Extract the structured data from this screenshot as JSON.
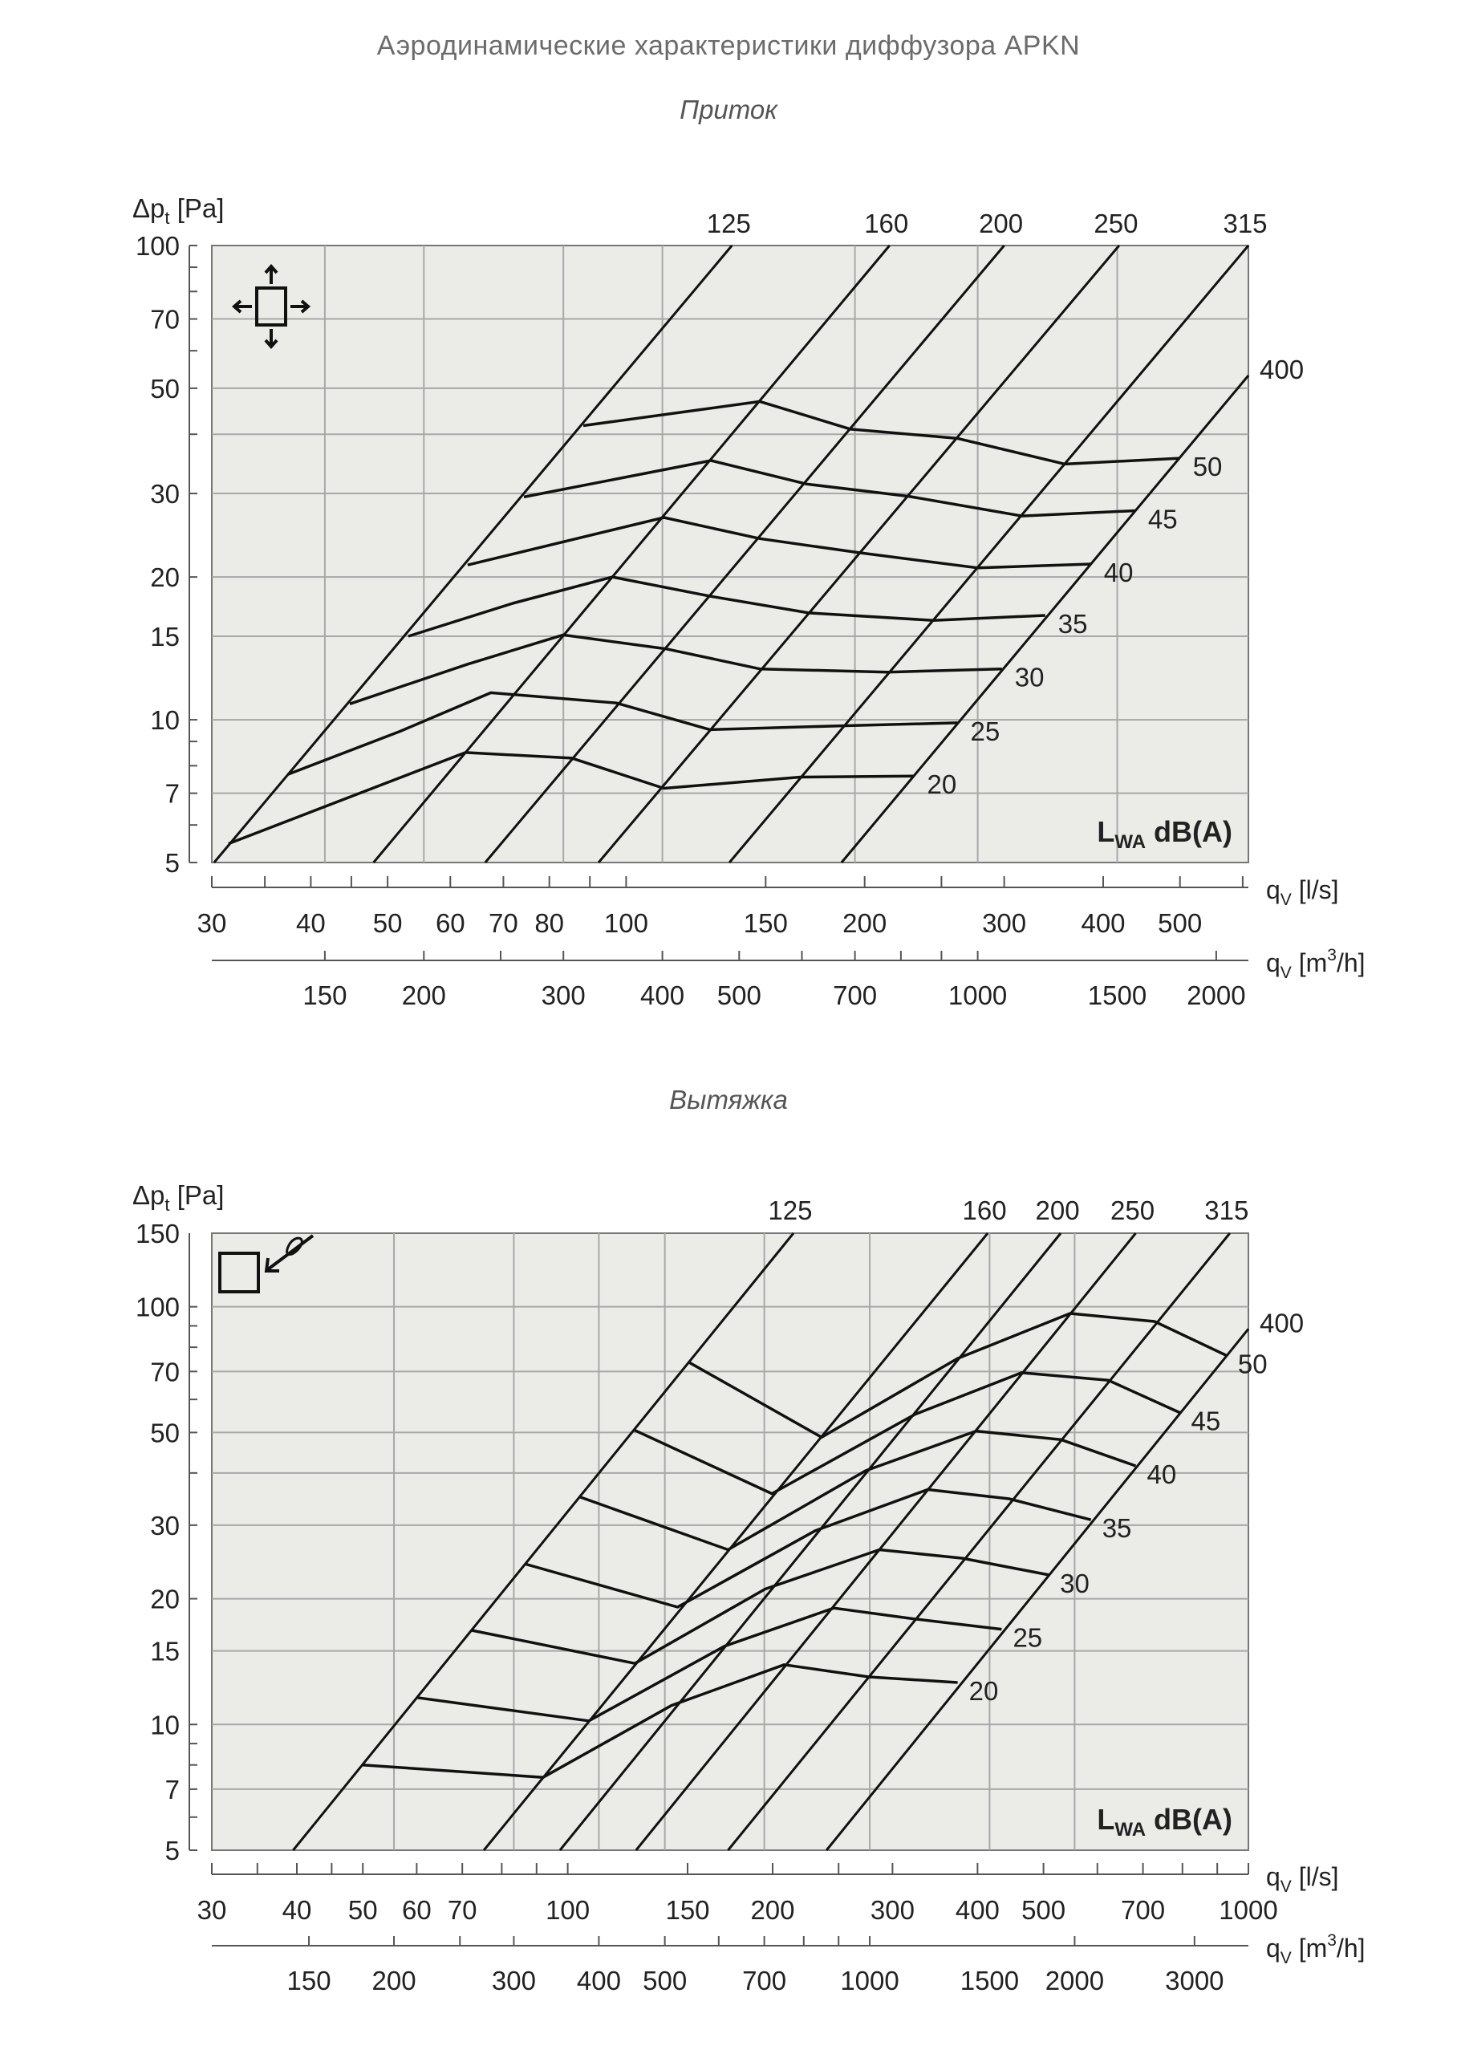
{
  "page": {
    "title": "Аэродинамические характеристики диффузора APKN",
    "supply_label": "Приток",
    "exhaust_label": "Вытяжка"
  },
  "colors": {
    "plot_bg": "#ebebe8",
    "grid": "#a8a8a8",
    "line": "#111111",
    "text": "#222222"
  },
  "chart_data": [
    {
      "type": "line",
      "title": "Приток",
      "icon": "supply-four-way-arrows-icon",
      "ylabel": {
        "main": "Δp",
        "sub": "t",
        "unit": " [Pa]"
      },
      "xlabel": {
        "main": "q",
        "sub": "V",
        "unit": " [l/s]"
      },
      "x2label": {
        "main": "q",
        "sub": "V",
        "unit": " [m",
        "sup": "3",
        "unit2": "/h]"
      },
      "annotation": {
        "main": "L",
        "sub": "WA",
        "rest": " dB(A)"
      },
      "xscale": "log",
      "yscale": "log",
      "xlim": [
        30,
        610
      ],
      "ylim": [
        5,
        100
      ],
      "yticks": [
        100,
        70,
        50,
        30,
        20,
        15,
        10,
        7,
        5
      ],
      "ygrid": [
        70,
        50,
        40,
        30,
        20,
        15,
        10,
        7
      ],
      "xticks": [
        30,
        40,
        50,
        60,
        70,
        80,
        100,
        150,
        200,
        300,
        400,
        500
      ],
      "x2ticks_m3h": [
        150,
        200,
        300,
        400,
        500,
        700,
        1000,
        1500,
        2000
      ],
      "xgrid_m3h": [
        150,
        200,
        300,
        400,
        700,
        1000,
        1500
      ],
      "size_series": [
        {
          "name": "125",
          "points": [
            [
              30.2,
              5
            ],
            [
              136,
              100
            ]
          ]
        },
        {
          "name": "160",
          "points": [
            [
              48,
              5
            ],
            [
              215,
              100
            ]
          ]
        },
        {
          "name": "200",
          "points": [
            [
              66.4,
              5
            ],
            [
              300,
              100
            ]
          ]
        },
        {
          "name": "250",
          "points": [
            [
              92.3,
              5
            ],
            [
              419,
              100
            ]
          ]
        },
        {
          "name": "315",
          "points": [
            [
              135,
              5
            ],
            [
              610,
              100
            ]
          ]
        },
        {
          "name": "400",
          "points": [
            [
              187,
              5
            ],
            [
              610,
              53.2
            ]
          ]
        }
      ],
      "db_series": [
        {
          "name": "50",
          "points": [
            [
              88.3,
              41.7
            ],
            [
              147.5,
              46.9
            ],
            [
              192,
              41.0
            ],
            [
              262,
              39.2
            ],
            [
              358,
              34.6
            ],
            [
              500,
              35.6
            ]
          ]
        },
        {
          "name": "45",
          "points": [
            [
              74.3,
              29.5
            ],
            [
              128,
              35.2
            ],
            [
              169,
              31.4
            ],
            [
              227,
              29.6
            ],
            [
              316,
              26.9
            ],
            [
              439,
              27.6
            ]
          ]
        },
        {
          "name": "40",
          "points": [
            [
              63.1,
              21.2
            ],
            [
              111.6,
              26.7
            ],
            [
              147.5,
              24.1
            ],
            [
              197,
              22.5
            ],
            [
              278,
              20.9
            ],
            [
              386,
              21.3
            ]
          ]
        },
        {
          "name": "35",
          "points": [
            [
              53.1,
              15.0
            ],
            [
              71.9,
              17.6
            ],
            [
              96.1,
              20.0
            ],
            [
              128,
              18.2
            ],
            [
              170,
              16.8
            ],
            [
              244,
              16.2
            ],
            [
              338,
              16.6
            ]
          ]
        },
        {
          "name": "30",
          "points": [
            [
              44.8,
              10.8
            ],
            [
              63.1,
              13.1
            ],
            [
              83.3,
              15.1
            ],
            [
              112.6,
              14.1
            ],
            [
              147.5,
              12.8
            ],
            [
              214,
              12.6
            ],
            [
              298,
              12.8
            ]
          ]
        },
        {
          "name": "25",
          "points": [
            [
              37.4,
              7.67
            ],
            [
              51.8,
              9.45
            ],
            [
              67.5,
              11.4
            ],
            [
              97.1,
              10.85
            ],
            [
              127.6,
              9.53
            ],
            [
              187,
              9.71
            ],
            [
              262,
              9.85
            ]
          ]
        },
        {
          "name": "20",
          "points": [
            [
              31.5,
              5.48
            ],
            [
              62.7,
              8.53
            ],
            [
              85.4,
              8.3
            ],
            [
              111.6,
              7.17
            ],
            [
              166,
              7.57
            ],
            [
              231,
              7.61
            ]
          ]
        }
      ]
    },
    {
      "type": "line",
      "title": "Вытяжка",
      "icon": "exhaust-inflow-arrow-icon",
      "ylabel": {
        "main": "Δp",
        "sub": "t",
        "unit": " [Pa]"
      },
      "xlabel": {
        "main": "q",
        "sub": "V",
        "unit": " [l/s]"
      },
      "x2label": {
        "main": "q",
        "sub": "V",
        "unit": " [m",
        "sup": "3",
        "unit2": "/h]"
      },
      "annotation": {
        "main": "L",
        "sub": "WA",
        "rest": " dB(A)"
      },
      "xscale": "log",
      "yscale": "log",
      "xlim": [
        30,
        1000
      ],
      "ylim": [
        5,
        150
      ],
      "yticks": [
        150,
        100,
        70,
        50,
        30,
        20,
        15,
        10,
        7,
        5
      ],
      "ygrid": [
        100,
        70,
        50,
        40,
        30,
        20,
        15,
        10,
        7
      ],
      "xticks": [
        30,
        40,
        50,
        60,
        70,
        100,
        150,
        200,
        300,
        400,
        500,
        700,
        1000
      ],
      "x2ticks_m3h": [
        150,
        200,
        300,
        400,
        500,
        700,
        1000,
        1500,
        2000,
        3000
      ],
      "xgrid_m3h": [
        200,
        300,
        400,
        500,
        700,
        1000,
        1500,
        2000
      ],
      "size_series": [
        {
          "name": "125",
          "points": [
            [
              39.5,
              5
            ],
            [
              214.6,
              150
            ]
          ]
        },
        {
          "name": "160",
          "points": [
            [
              75.3,
              5
            ],
            [
              414,
              150
            ]
          ]
        },
        {
          "name": "200",
          "points": [
            [
              97.4,
              5
            ],
            [
              530,
              150
            ]
          ]
        },
        {
          "name": "250",
          "points": [
            [
              126,
              5
            ],
            [
              683,
              150
            ]
          ]
        },
        {
          "name": "315",
          "points": [
            [
              172,
              5
            ],
            [
              939,
              150
            ]
          ]
        },
        {
          "name": "400",
          "points": [
            [
              240,
              5
            ],
            [
              1000,
              88.5
            ]
          ]
        }
      ],
      "db_series": [
        {
          "name": "50",
          "points": [
            [
              151,
              73.5
            ],
            [
              236,
              48.7
            ],
            [
              374,
              75.2
            ],
            [
              547,
              96.4
            ],
            [
              728,
              92.2
            ],
            [
              929,
              76.4
            ]
          ]
        },
        {
          "name": "45",
          "points": [
            [
              125.5,
              50.6
            ],
            [
              199.5,
              35.7
            ],
            [
              324,
              55.3
            ],
            [
              464,
              69.5
            ],
            [
              622,
              66.7
            ],
            [
              793,
              55.8
            ]
          ]
        },
        {
          "name": "40",
          "points": [
            [
              104.4,
              35.0
            ],
            [
              172,
              26.2
            ],
            [
              274,
              40.5
            ],
            [
              398,
              50.4
            ],
            [
              530,
              48.1
            ],
            [
              683,
              41.6
            ]
          ]
        },
        {
          "name": "35",
          "points": [
            [
              86.8,
              24.2
            ],
            [
              145,
              19.1
            ],
            [
              231,
              29.1
            ],
            [
              338,
              36.5
            ],
            [
              445,
              34.7
            ],
            [
              587,
              30.9
            ]
          ]
        },
        {
          "name": "30",
          "points": [
            [
              72.3,
              16.8
            ],
            [
              125.5,
              14.0
            ],
            [
              195,
              21.1
            ],
            [
              287,
              26.2
            ],
            [
              380,
              25.0
            ],
            [
              509,
              22.8
            ]
          ]
        },
        {
          "name": "25",
          "points": [
            [
              59.9,
              11.6
            ],
            [
              107.4,
              10.2
            ],
            [
              170,
              15.4
            ],
            [
              246,
              19.0
            ],
            [
              322,
              17.9
            ],
            [
              434,
              16.9
            ]
          ]
        },
        {
          "name": "20",
          "points": [
            [
              49.9,
              8.0
            ],
            [
              92,
              7.47
            ],
            [
              142,
              11.1
            ],
            [
              208,
              13.9
            ],
            [
              277,
              13.0
            ],
            [
              374,
              12.6
            ]
          ]
        }
      ]
    }
  ]
}
